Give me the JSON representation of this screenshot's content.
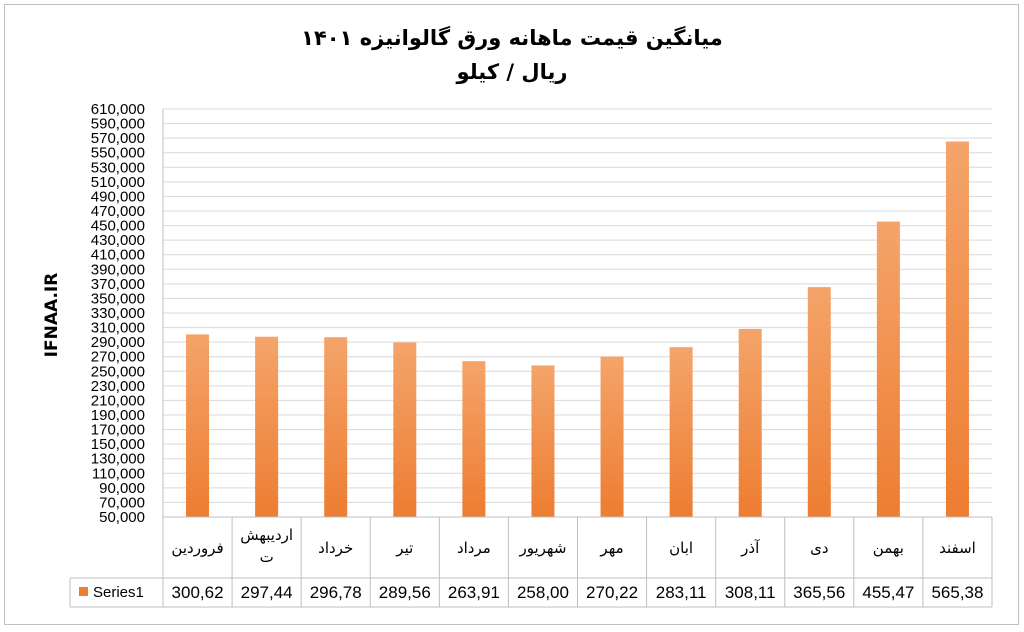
{
  "chart_data": {
    "type": "bar",
    "title": "میانگین قیمت ماهانه ورق گالوانیزه ۱۴۰۱",
    "subtitle": "ریال / کیلو",
    "ylabel": "IFNAA.IR",
    "xlabel": "",
    "ylim": [
      50000,
      610000
    ],
    "ytick_step": 20000,
    "grid": true,
    "bar_color": "#ed7d31",
    "bar_color_light": "#f4a46a",
    "categories": [
      "فروردین",
      "اردیبهش ت",
      "خرداد",
      "تیر",
      "مرداد",
      "شهریور",
      "مهر",
      "ابان",
      "آذر",
      "دی",
      "بهمن",
      "اسفند"
    ],
    "series": [
      {
        "name": "Series1",
        "values": [
          300620,
          297440,
          296780,
          289560,
          263910,
          258000,
          270220,
          283110,
          308110,
          365560,
          455470,
          565380
        ],
        "value_labels": [
          "300,62",
          "297,44",
          "296,78",
          "289,56",
          "263,91",
          "258,00",
          "270,22",
          "283,11",
          "308,11",
          "365,56",
          "455,47",
          "565,38"
        ]
      }
    ],
    "data_table": true
  }
}
